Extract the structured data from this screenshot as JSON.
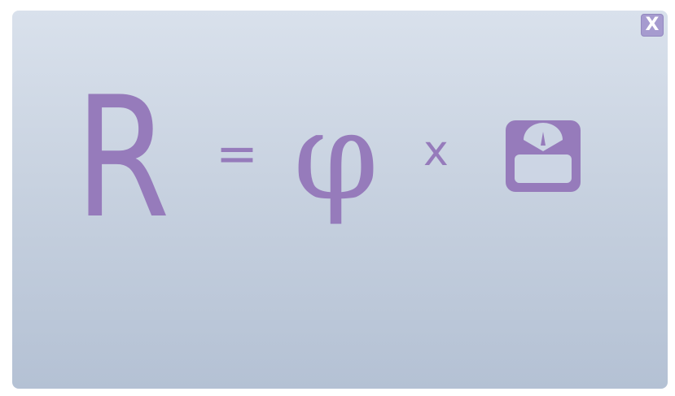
{
  "dialog": {
    "close_label": "X"
  },
  "equation": {
    "lhs": "R",
    "equals": "=",
    "factor": "φ",
    "operator": "x",
    "rhs_icon": "weighing-scale-icon"
  },
  "colors": {
    "glyph": "#967bbb",
    "close_button": "#a69bcf",
    "panel_top": "#d9e1ec",
    "panel_bottom": "#b4c1d4"
  }
}
